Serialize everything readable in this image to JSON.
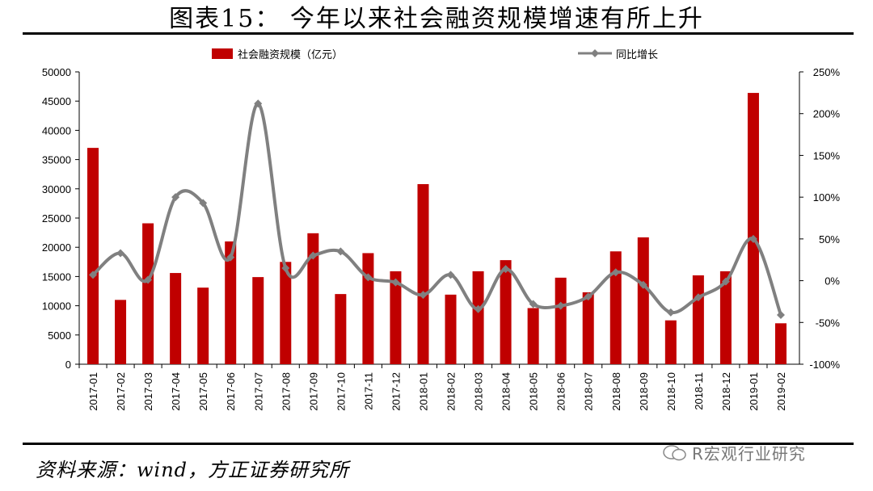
{
  "header": {
    "title": "图表15：  今年以来社会融资规模增速有所上升"
  },
  "footer": {
    "source": "资料来源：wind，方正证券研究所",
    "watermark": "R宏观行业研究"
  },
  "colors": {
    "bar": "#c00000",
    "line": "#808080",
    "text": "#000000"
  },
  "chart_data": {
    "type": "bar",
    "categories": [
      "2017-01",
      "2017-02",
      "2017-03",
      "2017-04",
      "2017-05",
      "2017-06",
      "2017-07",
      "2017-08",
      "2017-09",
      "2017-10",
      "2017-11",
      "2017-12",
      "2018-01",
      "2018-02",
      "2018-03",
      "2018-04",
      "2018-05",
      "2018-06",
      "2018-07",
      "2018-08",
      "2018-09",
      "2018-10",
      "2018-11",
      "2018-12",
      "2019-01",
      "2019-02"
    ],
    "series": [
      {
        "name": "社会融资规模（亿元）",
        "type": "bar",
        "axis": "left",
        "values": [
          37000,
          11000,
          24100,
          15600,
          13100,
          21000,
          14900,
          17500,
          22400,
          12000,
          19000,
          15900,
          30800,
          11900,
          15900,
          17800,
          9600,
          14800,
          12300,
          19300,
          21700,
          7500,
          15200,
          15900,
          46400,
          7000
        ]
      },
      {
        "name": "同比增长",
        "type": "line",
        "axis": "right",
        "values": [
          7,
          33,
          1,
          100,
          93,
          28,
          212,
          15,
          30,
          35,
          4,
          -2,
          -17,
          7,
          -34,
          14,
          -28,
          -30,
          -19,
          10,
          -5,
          -38,
          -20,
          -1,
          50,
          -41
        ]
      }
    ],
    "y_left": {
      "ylim": [
        0,
        50000
      ],
      "ticks": [
        "0",
        "5000",
        "10000",
        "15000",
        "20000",
        "25000",
        "30000",
        "35000",
        "40000",
        "45000",
        "50000"
      ]
    },
    "y_right": {
      "ylim": [
        -100,
        250
      ],
      "ticks": [
        "-100%",
        "-50%",
        "0%",
        "50%",
        "100%",
        "150%",
        "200%",
        "250%"
      ]
    },
    "legend_position": "top"
  }
}
